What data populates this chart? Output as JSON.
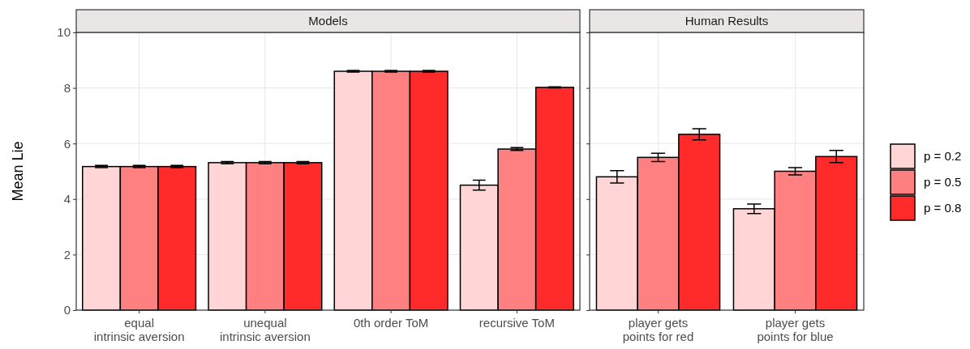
{
  "chart_data": [
    {
      "type": "bar",
      "title": "Models",
      "ylabel": "Mean Lie",
      "categories": [
        "equal\nintrinsic aversion",
        "unequal\nintrinsic aversion",
        "0th order ToM",
        "recursive ToM"
      ],
      "ylim": [
        0,
        10
      ],
      "yticks": [
        0,
        2,
        4,
        6,
        8,
        10
      ],
      "grid": true,
      "legend": false,
      "series": [
        {
          "color": "#ffd5d5",
          "values": [
            5.17,
            5.31,
            8.6,
            4.5
          ],
          "errors": [
            0.04,
            0.04,
            0.03,
            0.18
          ]
        },
        {
          "color": "#ff8080",
          "values": [
            5.17,
            5.31,
            8.6,
            5.8
          ],
          "errors": [
            0.04,
            0.04,
            0.03,
            0.05
          ]
        },
        {
          "color": "#ff2a2a",
          "values": [
            5.17,
            5.31,
            8.6,
            8.02
          ],
          "errors": [
            0.04,
            0.04,
            0.03,
            0.02
          ]
        }
      ]
    },
    {
      "type": "bar",
      "title": "Human Results",
      "categories": [
        "player gets\npoints for red",
        "player gets\npoints for blue"
      ],
      "ylim": [
        0,
        10
      ],
      "yticks": [
        0,
        2,
        4,
        6,
        8,
        10
      ],
      "tick_labels": "x",
      "grid": true,
      "legend": "right",
      "series": [
        {
          "name": "p = 0.2",
          "color": "#ffd5d5",
          "values": [
            4.8,
            3.65
          ],
          "errors": [
            0.22,
            0.17
          ]
        },
        {
          "name": "p = 0.5",
          "color": "#ff8080",
          "values": [
            5.5,
            5.0
          ],
          "errors": [
            0.15,
            0.13
          ]
        },
        {
          "name": "p = 0.8",
          "color": "#ff2a2a",
          "values": [
            6.33,
            5.53
          ],
          "errors": [
            0.2,
            0.22
          ]
        }
      ]
    }
  ]
}
